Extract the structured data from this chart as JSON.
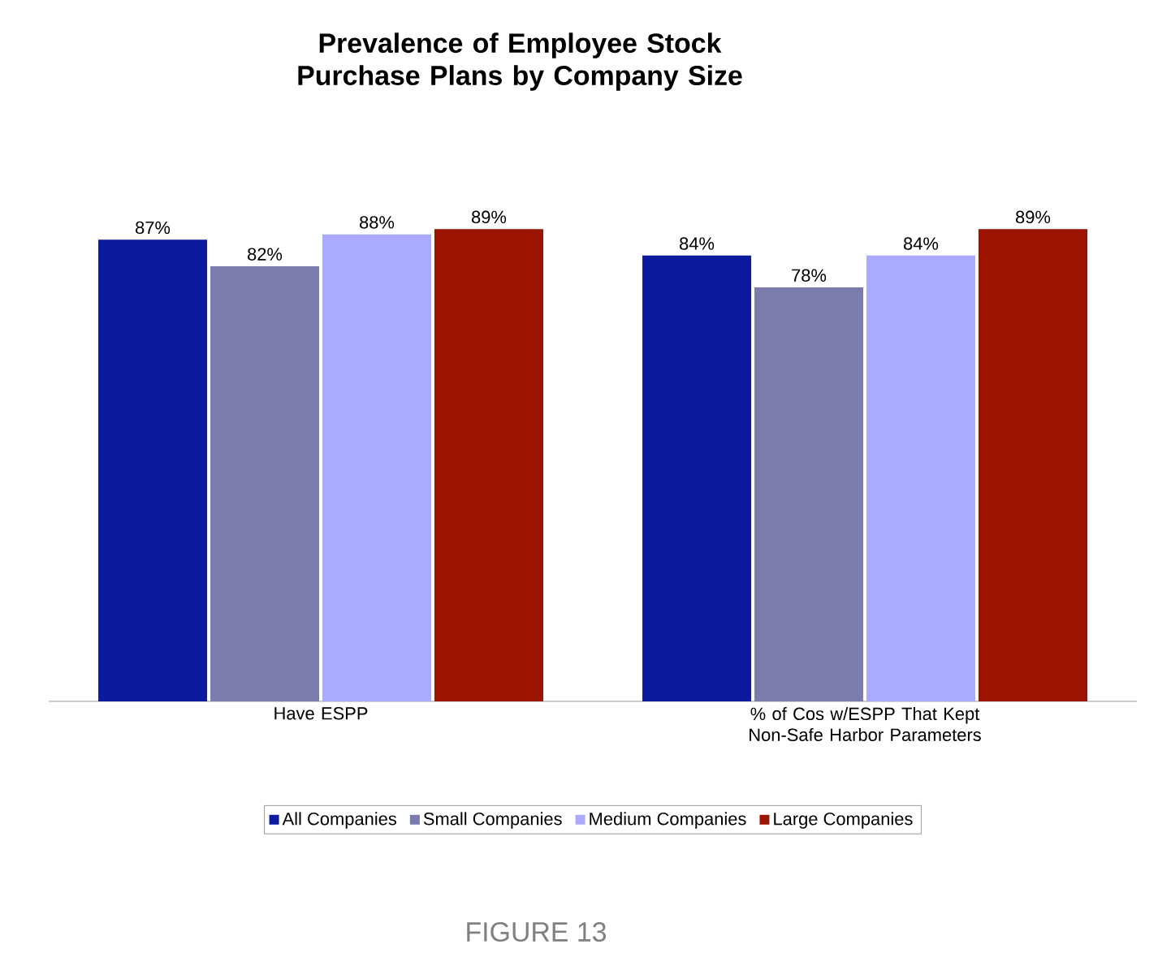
{
  "chart_data": {
    "type": "bar",
    "title": "Prevalence of Employee Stock Purchase Plans by Company Size",
    "categories": [
      "Have ESPP",
      "% of Cos w/ESPP That Kept Non-Safe Harbor Parameters"
    ],
    "series": [
      {
        "name": "All Companies",
        "color": "#0c1a9e",
        "values": [
          87,
          84
        ],
        "value_labels": [
          "87%",
          "84%"
        ]
      },
      {
        "name": "Small Companies",
        "color": "#7b7cab",
        "values": [
          82,
          78
        ],
        "value_labels": [
          "82%",
          "78%"
        ]
      },
      {
        "name": "Medium Companies",
        "color": "#aaaaff",
        "values": [
          88,
          84
        ],
        "value_labels": [
          "88%",
          "84%"
        ]
      },
      {
        "name": "Large Companies",
        "color": "#9b1400",
        "values": [
          89,
          89
        ],
        "value_labels": [
          "89%",
          "89%"
        ]
      }
    ],
    "legend": "bottom",
    "annotations": [
      "FIGURE 13"
    ]
  }
}
